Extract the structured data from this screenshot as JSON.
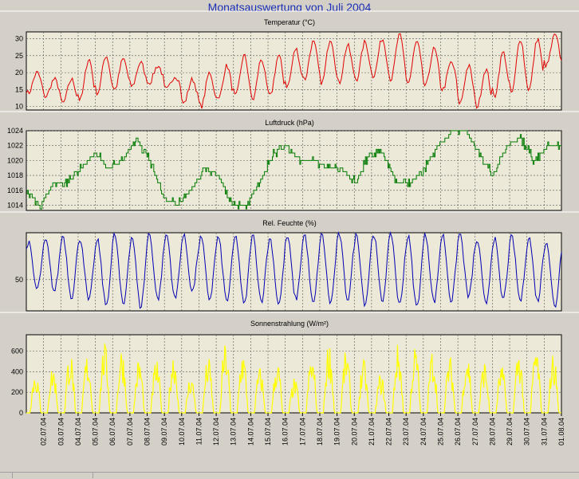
{
  "title": "Monatsauswertung von Juli 2004",
  "chart_data": [
    {
      "type": "line",
      "title": "Temperatur (°C)",
      "color": "#e00000",
      "ylim": [
        9,
        32
      ],
      "yticks": [
        10,
        15,
        20,
        25,
        30
      ],
      "x_start_day": 1,
      "series": [
        {
          "day_max": [
            20,
            18,
            18,
            24,
            25,
            24,
            23,
            22,
            19,
            18,
            20,
            22,
            25,
            24,
            25,
            27,
            29,
            30,
            28,
            29,
            30,
            31,
            29,
            27,
            23,
            22,
            21,
            26,
            30,
            30,
            31
          ],
          "night_min": [
            14,
            13,
            11,
            12,
            14,
            15,
            16,
            17,
            15,
            11,
            10,
            12,
            13,
            12,
            13,
            16,
            18,
            17,
            17,
            18,
            19,
            18,
            17,
            16,
            15,
            11,
            10,
            13,
            14,
            15,
            22
          ]
        }
      ]
    },
    {
      "type": "line",
      "title": "Luftdruck (hPa)",
      "color": "#007a00",
      "ylim": [
        1013.3,
        1024
      ],
      "yticks": [
        1014,
        1016,
        1018,
        1020,
        1022,
        1024
      ],
      "x_start_day": 1,
      "series": [
        {
          "values": [
            1016,
            1014,
            1017,
            1017,
            1019,
            1021,
            1019,
            1020,
            1023,
            1020,
            1015,
            1014,
            1016,
            1019,
            1018,
            1014,
            1014,
            1017,
            1021,
            1022,
            1020,
            1020,
            1019,
            1019,
            1017,
            1021,
            1021,
            1017,
            1017,
            1019,
            1022,
            1024,
            1024,
            1021,
            1018,
            1022,
            1023,
            1020,
            1022,
            1022
          ]
        }
      ]
    },
    {
      "type": "line",
      "title": "Rel. Feuchte (%)",
      "color": "#0000b4",
      "ylim": [
        18,
        98
      ],
      "yticks": [
        50
      ],
      "x_start_day": 1,
      "series": [
        {
          "day_min": [
            40,
            38,
            32,
            28,
            24,
            24,
            22,
            30,
            30,
            38,
            30,
            28,
            24,
            28,
            25,
            30,
            25,
            26,
            30,
            25,
            28,
            24,
            22,
            27,
            28,
            32,
            25,
            30,
            28,
            28,
            22
          ],
          "night_max": [
            88,
            90,
            95,
            92,
            90,
            96,
            94,
            97,
            96,
            95,
            93,
            93,
            94,
            95,
            92,
            94,
            96,
            96,
            97,
            96,
            97,
            97,
            94,
            96,
            96,
            97,
            90,
            92,
            94,
            93,
            90
          ]
        }
      ]
    },
    {
      "type": "area",
      "title": "Sonnenstrahlung (W/m²)",
      "color": "#ffff00",
      "ylim": [
        0,
        760
      ],
      "yticks": [
        0,
        200,
        400,
        600
      ],
      "x_start_day": 1,
      "series": [
        {
          "daily_peak": [
            420,
            470,
            610,
            580,
            690,
            650,
            540,
            520,
            610,
            380,
            550,
            690,
            620,
            450,
            520,
            340,
            570,
            700,
            620,
            520,
            390,
            680,
            660,
            630,
            560,
            610,
            520,
            470,
            630,
            660,
            590
          ]
        }
      ]
    }
  ],
  "x_axis": {
    "tick_labels": [
      "02.07.04",
      "03.07.04",
      "04.07.04",
      "05.07.04",
      "06.07.04",
      "07.07.04",
      "08.07.04",
      "09.07.04",
      "10.07.04",
      "11.07.04",
      "12.07.04",
      "13.07.04",
      "14.07.04",
      "15.07.04",
      "16.07.04",
      "17.07.04",
      "18.07.04",
      "19.07.04",
      "20.07.04",
      "21.07.04",
      "22.07.04",
      "23.07.04",
      "24.07.04",
      "25.07.04",
      "26.07.04",
      "27.07.04",
      "28.07.04",
      "29.07.04",
      "30.07.04",
      "31.07.04",
      "01.08.04"
    ]
  }
}
